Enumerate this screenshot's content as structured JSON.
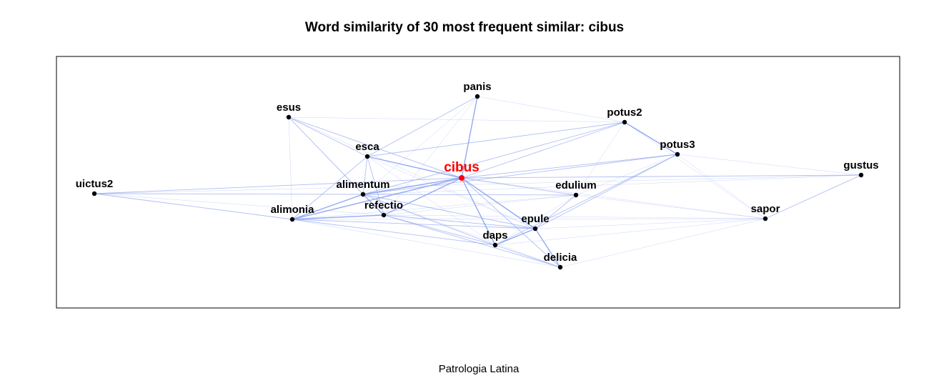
{
  "title": "Word similarity of 30 most frequent similar:  cibus",
  "caption": "Patrologia Latina",
  "colors": {
    "edge": "#8ea4f0",
    "node": "#000000",
    "center": "#ff0000"
  },
  "nodes": [
    {
      "id": "cibus",
      "label": "cibus",
      "center": true
    },
    {
      "id": "panis",
      "label": "panis"
    },
    {
      "id": "esus",
      "label": "esus"
    },
    {
      "id": "potus2",
      "label": "potus2"
    },
    {
      "id": "potus3",
      "label": "potus3"
    },
    {
      "id": "esca",
      "label": "esca"
    },
    {
      "id": "gustus",
      "label": "gustus"
    },
    {
      "id": "uictus2",
      "label": "uictus2"
    },
    {
      "id": "alimentum",
      "label": "alimentum"
    },
    {
      "id": "edulium",
      "label": "edulium"
    },
    {
      "id": "alimonia",
      "label": "alimonia"
    },
    {
      "id": "refectio",
      "label": "refectio"
    },
    {
      "id": "sapor",
      "label": "sapor"
    },
    {
      "id": "epule",
      "label": "epule"
    },
    {
      "id": "daps",
      "label": "daps"
    },
    {
      "id": "delicia",
      "label": "delicia"
    }
  ],
  "edges": [
    [
      "cibus",
      "panis",
      3
    ],
    [
      "cibus",
      "esca",
      3
    ],
    [
      "cibus",
      "alimentum",
      3
    ],
    [
      "cibus",
      "alimonia",
      3
    ],
    [
      "cibus",
      "refectio",
      3
    ],
    [
      "cibus",
      "epule",
      3
    ],
    [
      "cibus",
      "daps",
      3
    ],
    [
      "cibus",
      "delicia",
      2
    ],
    [
      "cibus",
      "potus2",
      2
    ],
    [
      "cibus",
      "potus3",
      2
    ],
    [
      "cibus",
      "edulium",
      2
    ],
    [
      "cibus",
      "gustus",
      2
    ],
    [
      "cibus",
      "uictus2",
      2
    ],
    [
      "cibus",
      "esus",
      2
    ],
    [
      "cibus",
      "sapor",
      1
    ],
    [
      "esca",
      "esus",
      2
    ],
    [
      "esca",
      "alimentum",
      2
    ],
    [
      "esca",
      "alimonia",
      2
    ],
    [
      "esca",
      "refectio",
      2
    ],
    [
      "esca",
      "potus2",
      2
    ],
    [
      "esca",
      "panis",
      2
    ],
    [
      "esca",
      "epule",
      1
    ],
    [
      "esca",
      "daps",
      1
    ],
    [
      "esus",
      "alimentum",
      2
    ],
    [
      "esus",
      "refectio",
      1
    ],
    [
      "esus",
      "alimonia",
      1
    ],
    [
      "esus",
      "epule",
      1
    ],
    [
      "esus",
      "potus2",
      1
    ],
    [
      "panis",
      "potus2",
      1
    ],
    [
      "panis",
      "alimentum",
      1
    ],
    [
      "panis",
      "refectio",
      1
    ],
    [
      "potus2",
      "potus3",
      3
    ],
    [
      "potus2",
      "alimentum",
      2
    ],
    [
      "potus2",
      "edulium",
      1
    ],
    [
      "potus2",
      "sapor",
      1
    ],
    [
      "potus3",
      "alimentum",
      2
    ],
    [
      "potus3",
      "epule",
      2
    ],
    [
      "potus3",
      "daps",
      2
    ],
    [
      "potus3",
      "gustus",
      1
    ],
    [
      "potus3",
      "sapor",
      1
    ],
    [
      "potus3",
      "edulium",
      1
    ],
    [
      "gustus",
      "sapor",
      2
    ],
    [
      "gustus",
      "alimentum",
      1
    ],
    [
      "gustus",
      "uictus2",
      1
    ],
    [
      "uictus2",
      "alimentum",
      2
    ],
    [
      "uictus2",
      "alimonia",
      2
    ],
    [
      "uictus2",
      "refectio",
      1
    ],
    [
      "alimentum",
      "alimonia",
      3
    ],
    [
      "alimentum",
      "refectio",
      3
    ],
    [
      "alimentum",
      "epule",
      2
    ],
    [
      "alimentum",
      "daps",
      2
    ],
    [
      "alimentum",
      "edulium",
      2
    ],
    [
      "alimentum",
      "delicia",
      1
    ],
    [
      "alimonia",
      "refectio",
      3
    ],
    [
      "alimonia",
      "daps",
      2
    ],
    [
      "alimonia",
      "epule",
      2
    ],
    [
      "alimonia",
      "sapor",
      1
    ],
    [
      "alimonia",
      "delicia",
      1
    ],
    [
      "alimonia",
      "edulium",
      1
    ],
    [
      "refectio",
      "epule",
      2
    ],
    [
      "refectio",
      "daps",
      2
    ],
    [
      "refectio",
      "delicia",
      2
    ],
    [
      "refectio",
      "edulium",
      1
    ],
    [
      "refectio",
      "sapor",
      1
    ],
    [
      "epule",
      "daps",
      3
    ],
    [
      "epule",
      "delicia",
      3
    ],
    [
      "epule",
      "edulium",
      2
    ],
    [
      "epule",
      "sapor",
      1
    ],
    [
      "daps",
      "delicia",
      2
    ],
    [
      "daps",
      "edulium",
      1
    ],
    [
      "daps",
      "sapor",
      1
    ],
    [
      "delicia",
      "sapor",
      1
    ],
    [
      "edulium",
      "sapor",
      1
    ]
  ]
}
